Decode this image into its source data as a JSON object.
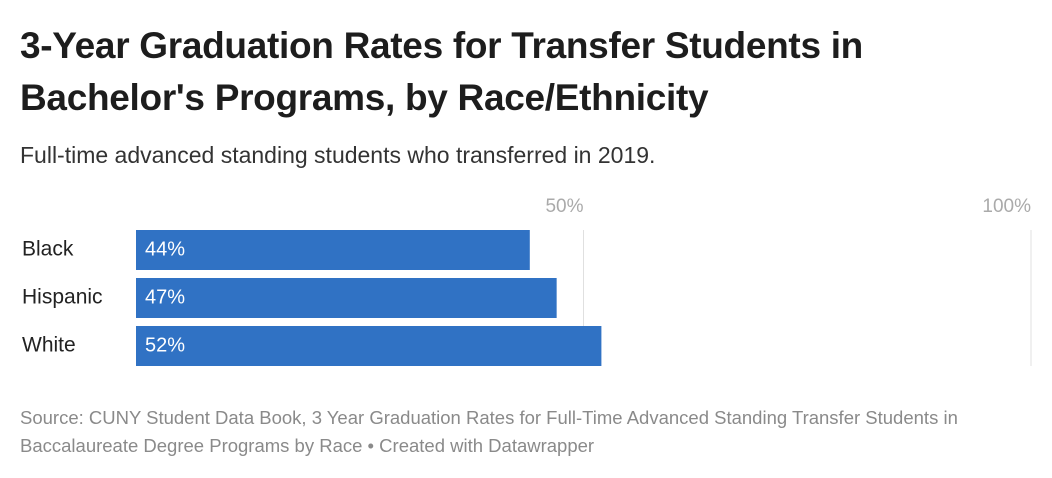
{
  "chart_data": {
    "type": "bar",
    "orientation": "horizontal",
    "title": "3-Year Graduation Rates for Transfer Students in Bachelor's Programs, by Race/Ethnicity",
    "subtitle": "Full-time advanced standing students who transferred in 2019.",
    "categories": [
      "Black",
      "Hispanic",
      "White"
    ],
    "values": [
      44,
      47,
      52
    ],
    "value_labels": [
      "44%",
      "47%",
      "52%"
    ],
    "color": "#3072c4",
    "xlim": [
      0,
      100
    ],
    "xticks": [
      {
        "value": 50,
        "label": "50%"
      },
      {
        "value": 100,
        "label": "100%"
      }
    ],
    "grid": true,
    "notes": "Source: CUNY Student Data Book, 3 Year Graduation Rates for Full-Time Advanced Standing Transfer Students in Baccalaureate Degree Programs by Race • Created with Datawrapper"
  }
}
